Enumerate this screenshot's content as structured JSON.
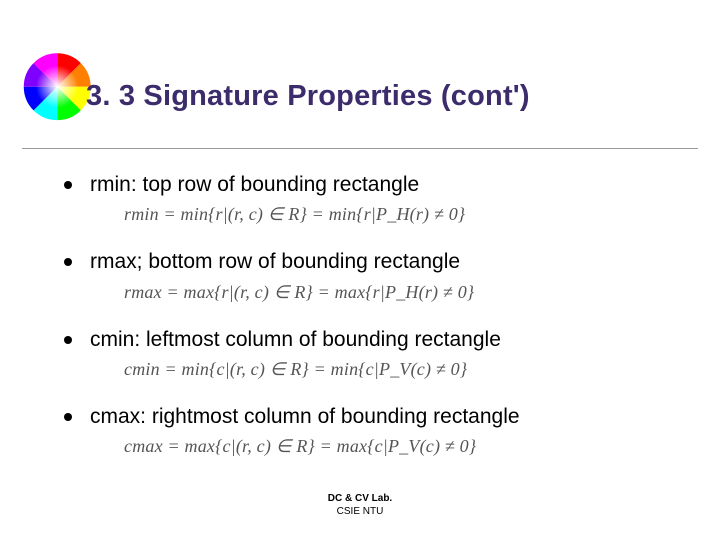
{
  "title": "3. 3 Signature Properties (cont')",
  "title_color": "#3c2c6c",
  "divider_color": "#9a9a9a",
  "bullet_color": "#000000",
  "text_color": "#000000",
  "formula_color": "#555555",
  "background_color": "#ffffff",
  "items": [
    {
      "text": "rmin: top row of bounding rectangle",
      "formula": "rmin = min{r|(r, c) ∈ R} = min{r|P_H(r) ≠ 0}"
    },
    {
      "text": "rmax; bottom row of bounding rectangle",
      "formula": "rmax = max{r|(r, c) ∈ R} = max{r|P_H(r) ≠ 0}"
    },
    {
      "text": "cmin: leftmost column of bounding rectangle",
      "formula": "cmin = min{c|(r, c) ∈ R} = min{c|P_V(c) ≠ 0}"
    },
    {
      "text": "cmax: rightmost column of bounding rectangle",
      "formula": "cmax = max{c|(r, c) ∈ R} = max{c|P_V(c) ≠ 0}"
    }
  ],
  "footer": {
    "lab": "DC & CV Lab.",
    "dept": "CSIE NTU"
  },
  "color_wheel_colors": [
    "#ff0000",
    "#ff8000",
    "#ffff00",
    "#00ff00",
    "#00ffff",
    "#0000ff",
    "#8000ff",
    "#ff00ff"
  ]
}
